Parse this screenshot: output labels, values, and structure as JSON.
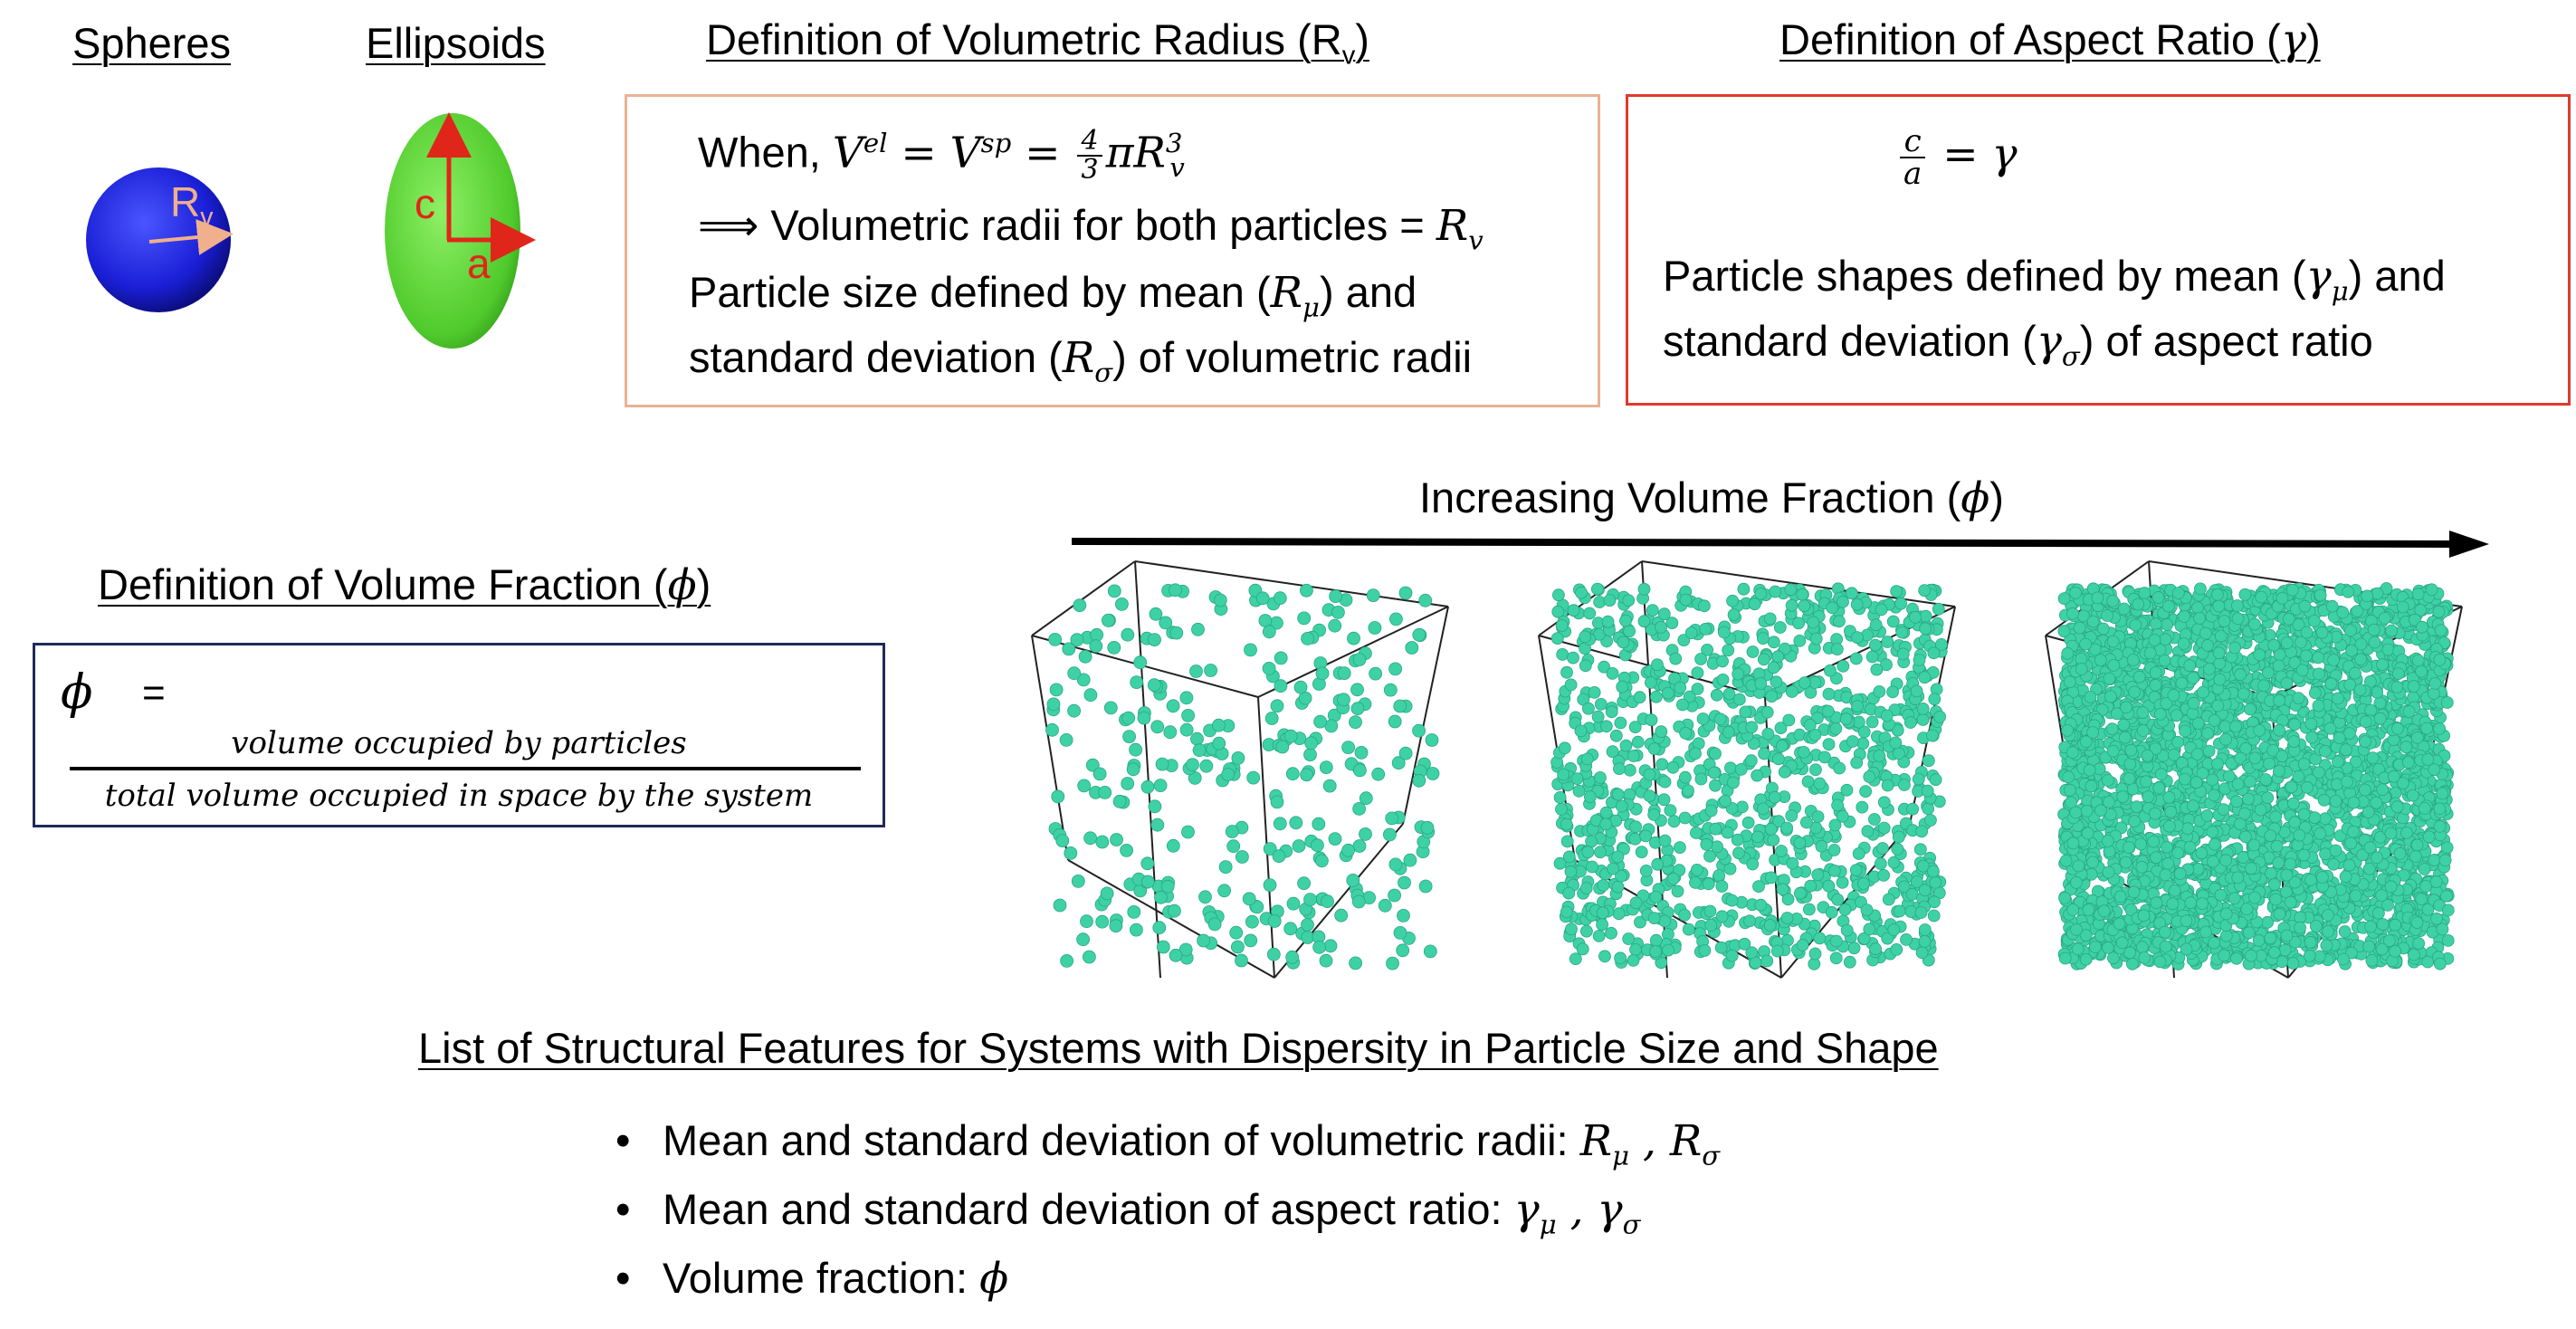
{
  "headings": {
    "spheres": "Spheres",
    "ellipsoids": "Ellipsoids",
    "volumetric_radius_def": "Definition of Volumetric Radius (R",
    "volumetric_radius_sub": "v",
    "volumetric_radius_close": ")",
    "aspect_ratio_def": "Definition of Aspect Ratio (",
    "aspect_ratio_symbol": "γ",
    "aspect_ratio_close": ")",
    "volume_fraction_def": "Definition of Volume Fraction (",
    "volume_fraction_symbol": "ϕ",
    "volume_fraction_close": ")",
    "increasing_volume_fraction": "Increasing Volume Fraction (",
    "increasing_symbol": "ϕ",
    "increasing_close": ")",
    "feature_list_title": "List of Structural Features for Systems with Dispersity in Particle Size and Shape"
  },
  "sphere_labels": {
    "radius": "R",
    "radius_sub": "v"
  },
  "ellipsoid_labels": {
    "c": "c",
    "a": "a"
  },
  "volumetric_radius_box": {
    "line1_prefix": "When, ",
    "line1_eq": "V",
    "line1_eq_sup": "el",
    "line1_eq2": " =  V",
    "line1_eq2_sup": "sp",
    "line1_eq3": " = ",
    "frac_num": "4",
    "frac_den": "3",
    "line1_eq4": "πR",
    "line1_eq4_sup": "3",
    "line1_eq4_sub": "v",
    "line2_prefix": "⟹ Volumetric radii for both particles = ",
    "line2_symbol": "R",
    "line2_symbol_sub": "v",
    "line3_a": "Particle size defined by mean (",
    "line3_sym": "R",
    "line3_sym_sub": "μ",
    "line3_b": ") and",
    "line4_a": "standard deviation (",
    "line4_sym": "R",
    "line4_sym_sub": "σ",
    "line4_b": ") of volumetric radii",
    "border_color": "#e8b294"
  },
  "aspect_ratio_box": {
    "frac_num": "c",
    "frac_den": "a",
    "eq_rhs": " = γ",
    "line2_a": "Particle shapes defined by mean (",
    "line2_sym": "γ",
    "line2_sym_sub": "μ",
    "line2_b": ") and",
    "line3_a": "standard deviation (",
    "line3_sym": "γ",
    "line3_sym_sub": "σ",
    "line3_b": ") of aspect ratio",
    "border_color": "#e03a2e"
  },
  "volume_fraction_box": {
    "symbol": "ϕ",
    "equals": "=",
    "numerator": "volume occupied by particles",
    "denominator": "total volume occupied in space by the system",
    "border_color": "#1f2a5a"
  },
  "features": [
    {
      "text": "Mean and standard deviation of volumetric radii:  ",
      "sym1": "R",
      "sub1": "μ",
      "sep": " , ",
      "sym2": "R",
      "sub2": "σ"
    },
    {
      "text": "Mean and standard deviation of aspect ratio:  ",
      "sym1": "γ",
      "sub1": "μ",
      "sep": " , ",
      "sym2": "γ",
      "sub2": "σ"
    },
    {
      "text": "Volume fraction: ",
      "sym1": "ϕ",
      "sub1": "",
      "sep": "",
      "sym2": "",
      "sub2": ""
    }
  ],
  "bullet_glyph": "•",
  "colors": {
    "sphere": "#1a1fd6",
    "ellipsoid": "#5fd13a",
    "radius_arrow": "#f0b08c",
    "ellipsoid_axes": "#e0261b",
    "particles": "#3ed1a6"
  },
  "cubes": [
    {
      "name": "low-density-cube",
      "particle_count": 320
    },
    {
      "name": "medium-density-cube",
      "particle_count": 1100
    },
    {
      "name": "high-density-cube",
      "particle_count": 3400
    }
  ]
}
